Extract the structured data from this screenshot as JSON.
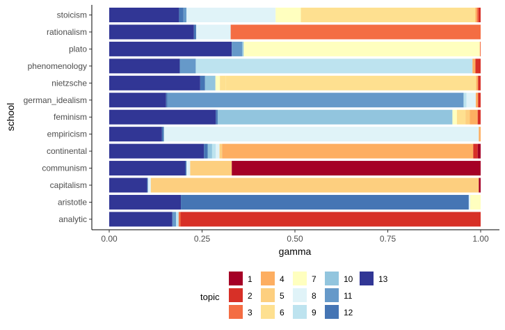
{
  "chart_data": {
    "type": "bar",
    "orientation": "horizontal",
    "stacked": true,
    "xlabel": "gamma",
    "ylabel": "school",
    "xlim": [
      0,
      1
    ],
    "xticks": [
      0,
      0.25,
      0.5,
      0.75,
      1
    ],
    "xtick_labels": [
      "0.00",
      "0.25",
      "0.50",
      "0.75",
      "1.00"
    ],
    "grid": false,
    "legend": {
      "title": "topic",
      "position": "bottom",
      "items": [
        {
          "label": "1",
          "color": "#a50026"
        },
        {
          "label": "2",
          "color": "#d73027"
        },
        {
          "label": "3",
          "color": "#f46d43"
        },
        {
          "label": "4",
          "color": "#fdae61"
        },
        {
          "label": "5",
          "color": "#fdcf7f"
        },
        {
          "label": "6",
          "color": "#fee090"
        },
        {
          "label": "7",
          "color": "#ffffbf"
        },
        {
          "label": "8",
          "color": "#e0f3f8"
        },
        {
          "label": "9",
          "color": "#bde3ef"
        },
        {
          "label": "10",
          "color": "#92c5de"
        },
        {
          "label": "11",
          "color": "#6699c9"
        },
        {
          "label": "12",
          "color": "#4575b4"
        },
        {
          "label": "13",
          "color": "#313695"
        }
      ]
    },
    "categories": [
      "stoicism",
      "rationalism",
      "plato",
      "phenomenology",
      "nietzsche",
      "german_idealism",
      "feminism",
      "empiricism",
      "continental",
      "communism",
      "capitalism",
      "aristotle",
      "analytic"
    ],
    "segments": {
      "stoicism": [
        [
          "13",
          0.188
        ],
        [
          "12",
          0.012
        ],
        [
          "11",
          0.008
        ],
        [
          "8",
          0.24
        ],
        [
          "7",
          0.068
        ],
        [
          "6",
          0.47
        ],
        [
          "4",
          0.004
        ],
        [
          "3",
          0.004
        ],
        [
          "2",
          0.006
        ]
      ],
      "rationalism": [
        [
          "13",
          0.228
        ],
        [
          "12",
          0.006
        ],
        [
          "8",
          0.093
        ],
        [
          "3",
          0.673
        ]
      ],
      "plato": [
        [
          "13",
          0.33
        ],
        [
          "11",
          0.028
        ],
        [
          "10",
          0.004
        ],
        [
          "7",
          0.636
        ],
        [
          "3",
          0.002
        ]
      ],
      "phenomenology": [
        [
          "13",
          0.19
        ],
        [
          "11",
          0.043
        ],
        [
          "9",
          0.745
        ],
        [
          "4",
          0.008
        ],
        [
          "2",
          0.014
        ]
      ],
      "nietzsche": [
        [
          "13",
          0.245
        ],
        [
          "12",
          0.013
        ],
        [
          "10",
          0.028
        ],
        [
          "7",
          0.012
        ],
        [
          "6",
          0.016
        ],
        [
          "6",
          0.674
        ],
        [
          "4",
          0.005
        ],
        [
          "2",
          0.007
        ]
      ],
      "german_idealism": [
        [
          "13",
          0.153
        ],
        [
          "12",
          0.004
        ],
        [
          "11",
          0.797
        ],
        [
          "9",
          0.008
        ],
        [
          "8",
          0.025
        ],
        [
          "4",
          0.006
        ],
        [
          "2",
          0.007
        ]
      ],
      "feminism": [
        [
          "13",
          0.287
        ],
        [
          "12",
          0.005
        ],
        [
          "10",
          0.632
        ],
        [
          "7",
          0.012
        ],
        [
          "6",
          0.023
        ],
        [
          "5",
          0.012
        ],
        [
          "4",
          0.021
        ],
        [
          "2",
          0.008
        ]
      ],
      "empiricism": [
        [
          "13",
          0.142
        ],
        [
          "12",
          0.005
        ],
        [
          "8",
          0.848
        ],
        [
          "4",
          0.005
        ]
      ],
      "continental": [
        [
          "13",
          0.255
        ],
        [
          "12",
          0.01
        ],
        [
          "10",
          0.012
        ],
        [
          "9",
          0.01
        ],
        [
          "8",
          0.01
        ],
        [
          "5",
          0.007
        ],
        [
          "4",
          0.676
        ],
        [
          "2",
          0.012
        ],
        [
          "1",
          0.008
        ]
      ],
      "communism": [
        [
          "13",
          0.205
        ],
        [
          "12",
          0.003
        ],
        [
          "8",
          0.01
        ],
        [
          "5",
          0.112
        ],
        [
          "1",
          0.67
        ]
      ],
      "capitalism": [
        [
          "13",
          0.102
        ],
        [
          "12",
          0.002
        ],
        [
          "8",
          0.008
        ],
        [
          "5",
          0.883
        ],
        [
          "1",
          0.005
        ]
      ],
      "aristotle": [
        [
          "13",
          0.193
        ],
        [
          "12",
          0.775
        ],
        [
          "8",
          0.004
        ],
        [
          "7",
          0.028
        ]
      ],
      "analytic": [
        [
          "13",
          0.17
        ],
        [
          "11",
          0.01
        ],
        [
          "9",
          0.007
        ],
        [
          "3",
          0.005
        ],
        [
          "2",
          0.808
        ]
      ]
    }
  }
}
